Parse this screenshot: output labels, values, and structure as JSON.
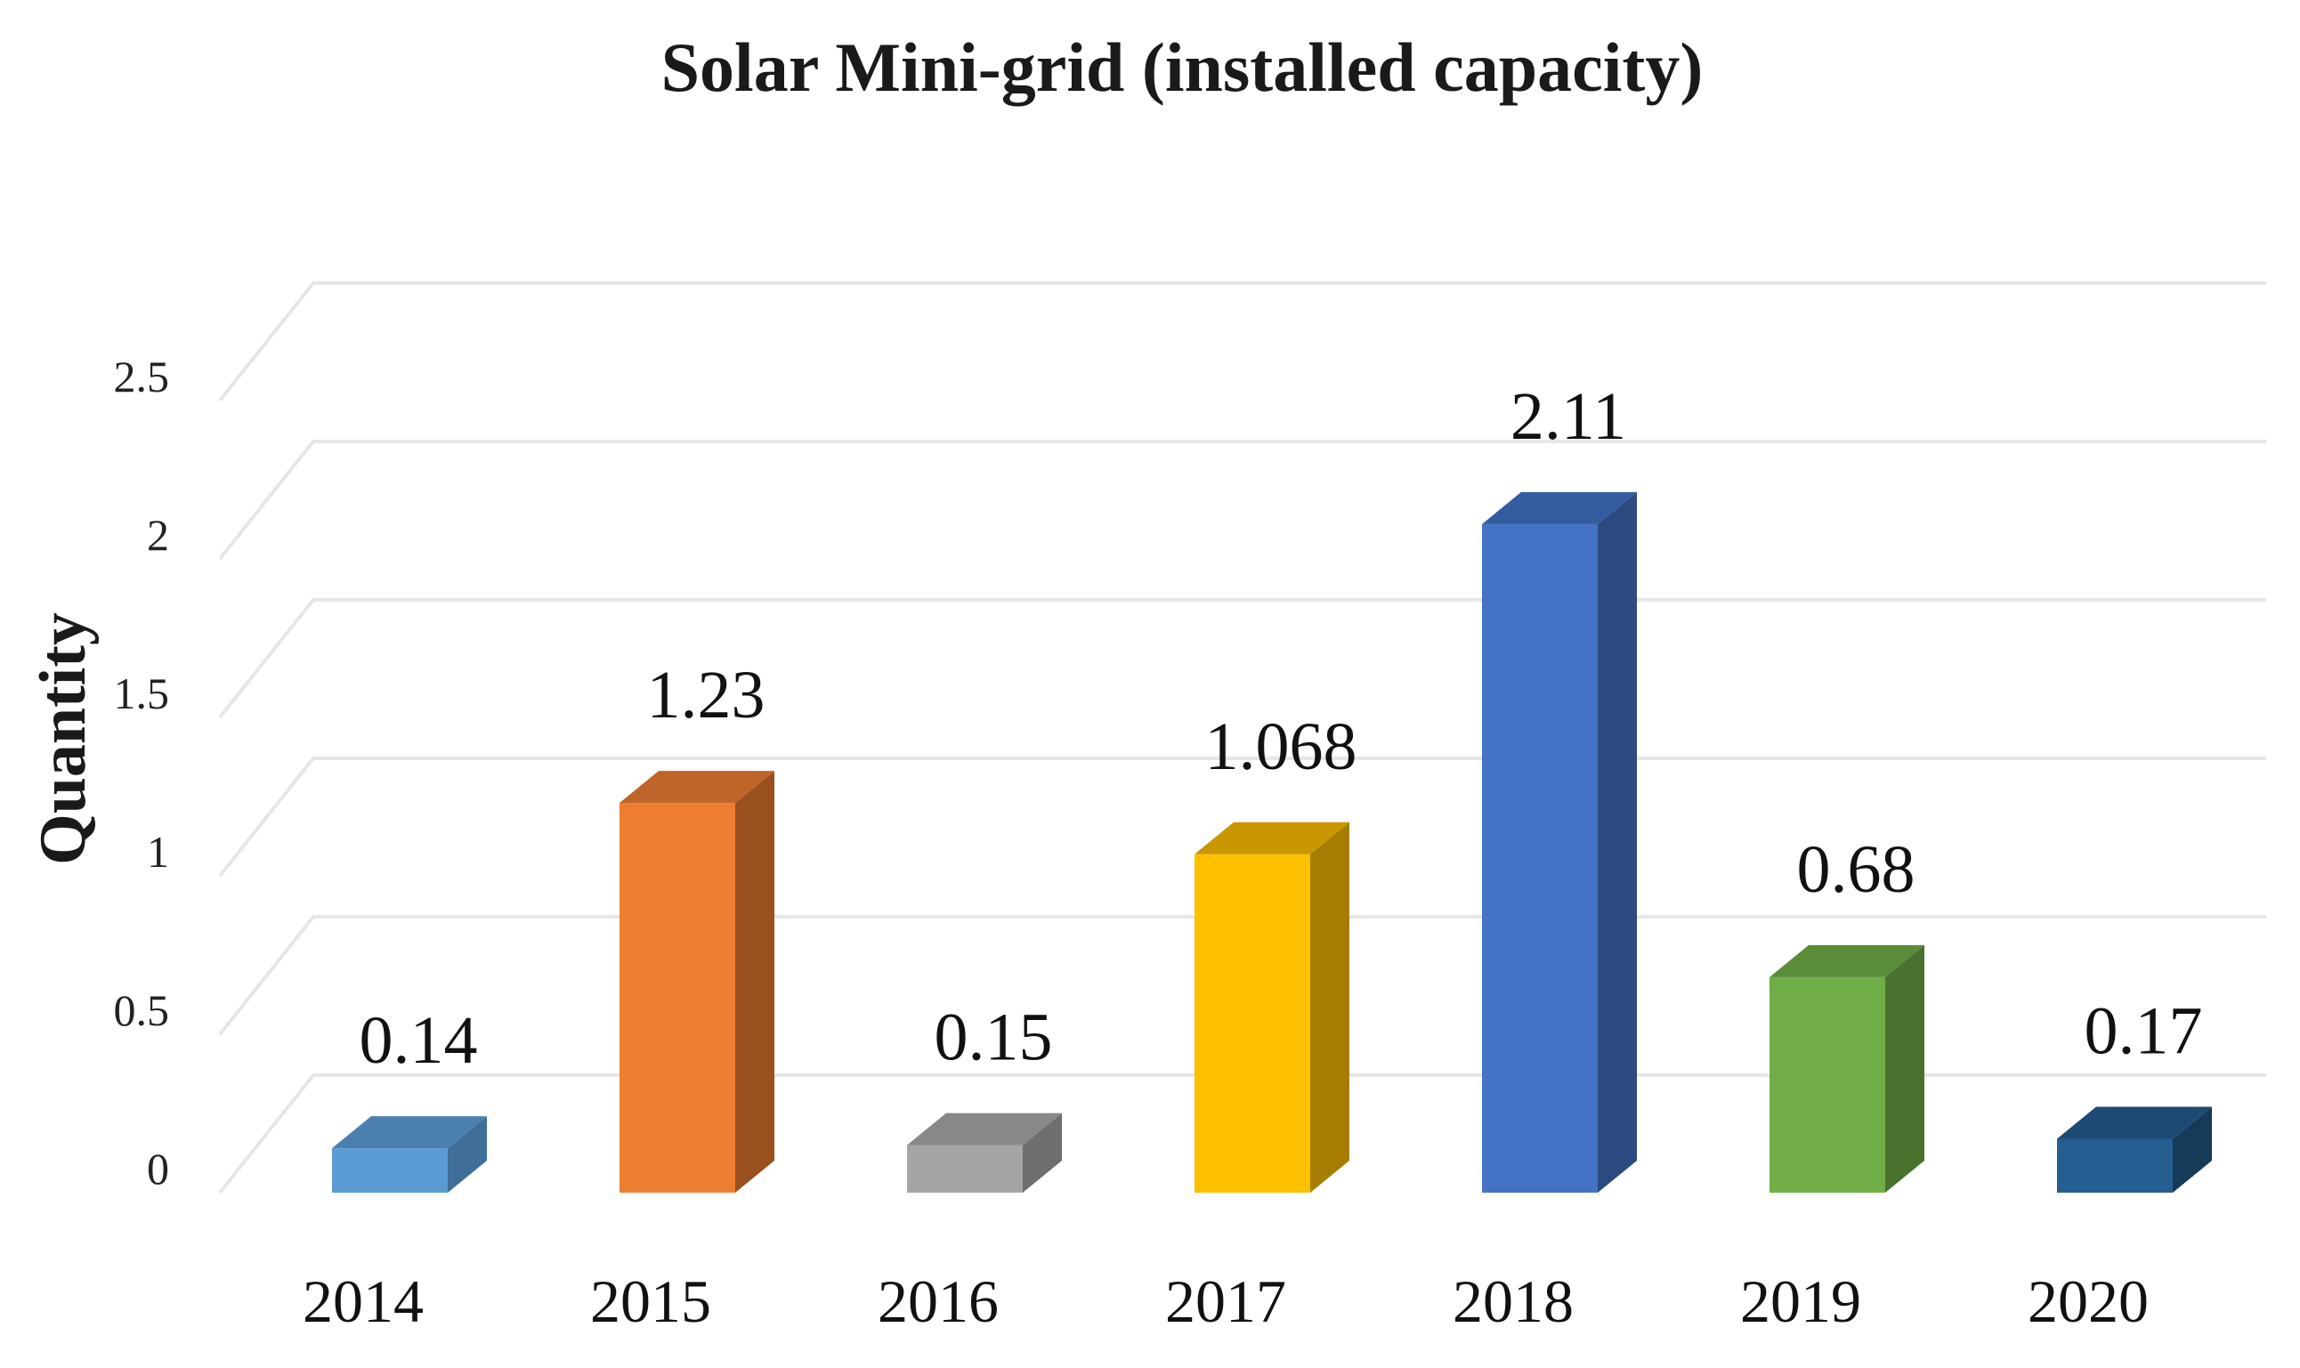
{
  "chart_data": {
    "type": "bar",
    "title": "Solar Mini-grid (installed capacity)",
    "xlabel": "",
    "ylabel": "Quantity",
    "ylim": [
      0,
      2.5
    ],
    "yticks": [
      "0",
      "0.5",
      "1",
      "1.5",
      "2",
      "2.5"
    ],
    "grid": true,
    "legend": "none",
    "categories": [
      "2014",
      "2015",
      "2016",
      "2017",
      "2018",
      "2019",
      "2020"
    ],
    "values": [
      0.14,
      1.23,
      0.15,
      1.068,
      2.11,
      0.68,
      0.17
    ],
    "value_labels": [
      "0.14",
      "1.23",
      "0.15",
      "1.068",
      "2.11",
      "0.68",
      "0.17"
    ],
    "colors": [
      {
        "front": "#5b9bd5",
        "side": "#3f6f99",
        "top": "#4a7fb0"
      },
      {
        "front": "#ed7d31",
        "side": "#9b501f",
        "top": "#c0652a"
      },
      {
        "front": "#a5a5a5",
        "side": "#6e6e6e",
        "top": "#888888"
      },
      {
        "front": "#ffc000",
        "side": "#a67d00",
        "top": "#c99800"
      },
      {
        "front": "#4472c4",
        "side": "#2c4a80",
        "top": "#345ca0"
      },
      {
        "front": "#70ad47",
        "side": "#4a722f",
        "top": "#5a8c3a"
      },
      {
        "front": "#255e91",
        "side": "#163a5a",
        "top": "#1d4a73"
      }
    ],
    "grid_color": "#e6e6e6"
  }
}
